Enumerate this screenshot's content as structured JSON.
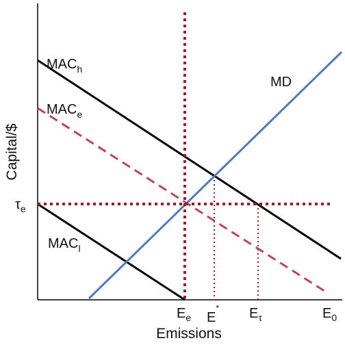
{
  "axes": {
    "ylabel": "Capital/$",
    "xlabel": "Emissions"
  },
  "curves": {
    "mac_h": {
      "base": "MAC",
      "sub": "h",
      "color": "#000000",
      "style": "solid"
    },
    "mac_e": {
      "base": "MAC",
      "sub": "e",
      "color": "#c2405f",
      "style": "dashed"
    },
    "mac_l": {
      "base": "MAC",
      "sub": "l",
      "color": "#000000",
      "style": "solid"
    },
    "md": {
      "label": "MD",
      "color": "#4f79c4",
      "style": "solid"
    }
  },
  "guides": {
    "tau_e": {
      "base": "τ",
      "sub": "e",
      "color": "#a31a27",
      "style": "dotted"
    },
    "e_e": {
      "base": "E",
      "sub": "e",
      "color": "#a31a27",
      "style": "dotted"
    },
    "e_star": {
      "base": "E",
      "sup": "*",
      "color": "#a31a27",
      "style": "dotted"
    },
    "e_tau": {
      "base": "E",
      "sub": "τ",
      "color": "#a31a27",
      "style": "dotted"
    }
  },
  "x_ticks": {
    "e_0": {
      "base": "E",
      "sub": "0"
    }
  }
}
